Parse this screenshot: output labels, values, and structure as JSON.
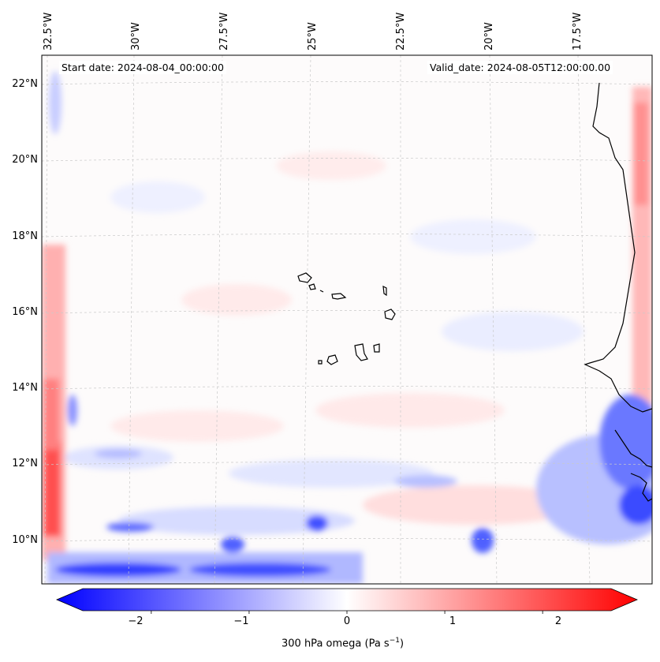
{
  "map": {
    "start_label": "Start date: 2024-08-04_00:00:00",
    "valid_label": "Valid_date: 2024-08-05T12:00:00.00",
    "lon_labels": [
      "32.5°W",
      "30°W",
      "27.5°W",
      "25°W",
      "22.5°W",
      "20°W",
      "17.5°W"
    ],
    "lat_labels": [
      "22°N",
      "20°N",
      "18°N",
      "16°N",
      "14°N",
      "12°N",
      "10°N"
    ],
    "field_variable": "300 hPa omega",
    "features": [
      "cabo-verde-islands",
      "west-africa-coastline"
    ]
  },
  "colorbar": {
    "label": "300 hPa omega (Pa s",
    "label_sup": "−1",
    "label_end": ")",
    "ticks": [
      "−2",
      "−1",
      "0",
      "1",
      "2"
    ],
    "tick_values": [
      -2,
      -1,
      0,
      1,
      2
    ],
    "range": [
      -2.7,
      2.7
    ],
    "extend": "both",
    "colormap": "bwr",
    "colors": {
      "low": "#0000ff",
      "mid": "#ffffff",
      "high": "#ff0000"
    }
  }
}
